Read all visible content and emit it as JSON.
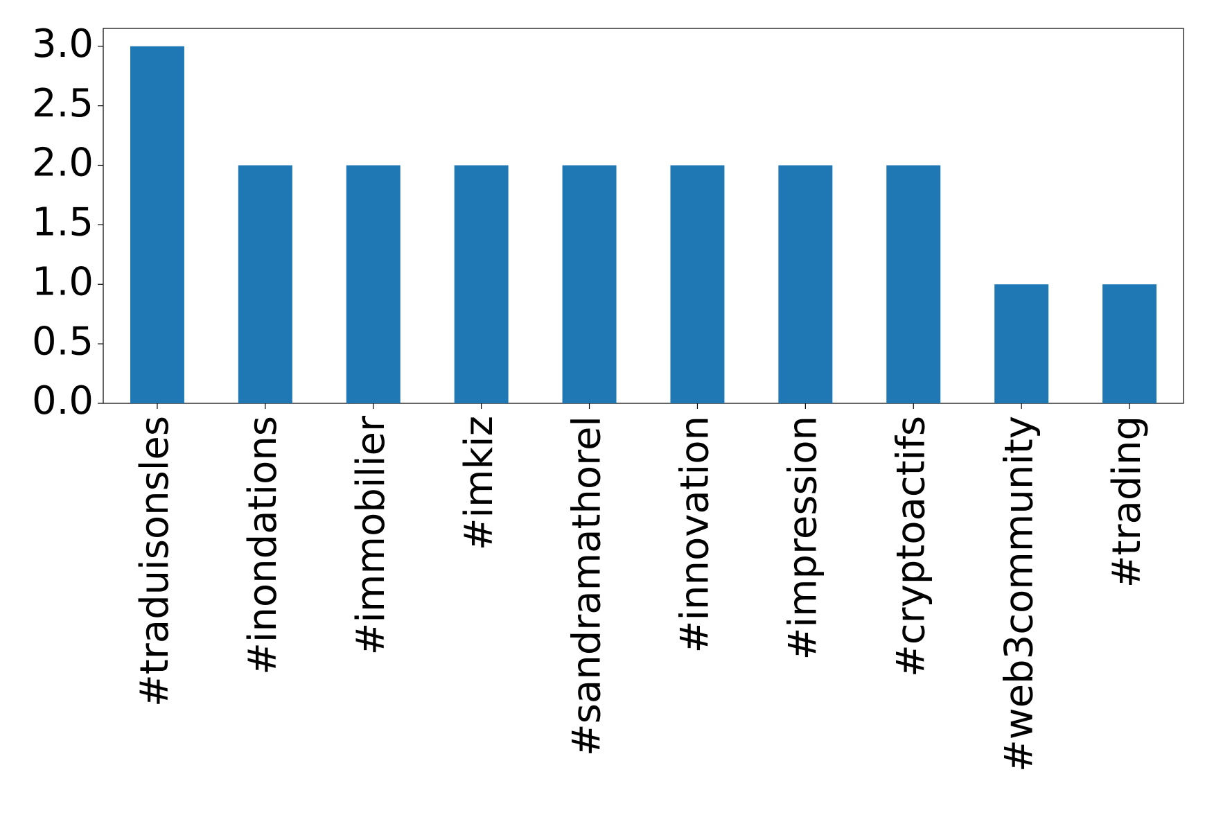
{
  "chart_data": {
    "type": "bar",
    "categories": [
      "#traduisonsles",
      "#inondations",
      "#immobilier",
      "#imkiz",
      "#sandramathorel",
      "#innovation",
      "#impression",
      "#cryptoactifs",
      "#web3community",
      "#trading"
    ],
    "values": [
      3,
      2,
      2,
      2,
      2,
      2,
      2,
      2,
      1,
      1
    ],
    "color": "#1f77b4",
    "ylim": [
      0,
      3.15
    ],
    "yticks": [
      {
        "value": 0,
        "label": "0.0"
      },
      {
        "value": 0.5,
        "label": "0.5"
      },
      {
        "value": 1,
        "label": "1.0"
      },
      {
        "value": 1.5,
        "label": "1.5"
      },
      {
        "value": 2,
        "label": "2.0"
      },
      {
        "value": 2.5,
        "label": "2.5"
      },
      {
        "value": 3,
        "label": "3.0"
      }
    ],
    "grid": false
  }
}
